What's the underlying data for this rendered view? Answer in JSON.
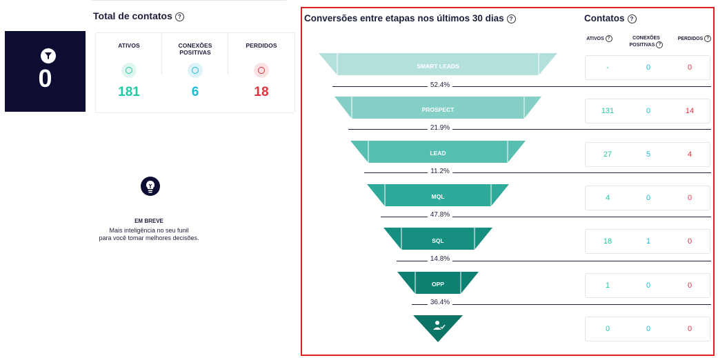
{
  "summary": {
    "zero_value": "0",
    "title": "Total de contatos",
    "stats": [
      {
        "label": "ATIVOS",
        "value": "181",
        "color": "#1ec9a3"
      },
      {
        "label": "CONEXÕES POSITIVAS",
        "value": "6",
        "color": "#1bbcd8"
      },
      {
        "label": "PERDIDOS",
        "value": "18",
        "color": "#e0323d"
      }
    ]
  },
  "coming_soon": {
    "title": "EM BREVE",
    "line1": "Mais inteligência no seu funil",
    "line2": "para você tomar melhores decisões."
  },
  "funnel": {
    "title": "Conversões entre etapas nos últimos 30 dias",
    "stages": [
      {
        "name": "SMART LEADS",
        "color": "#b4e0dc"
      },
      {
        "name": "PROSPECT",
        "color": "#84d0c6"
      },
      {
        "name": "LEAD",
        "color": "#57bfb1"
      },
      {
        "name": "MQL",
        "color": "#2ea99a"
      },
      {
        "name": "SQL",
        "color": "#178f80"
      },
      {
        "name": "OPP",
        "color": "#0d8072"
      },
      {
        "name": "",
        "color": "#0c7467"
      }
    ],
    "rates": [
      "52.4%",
      "21.9%",
      "11.2%",
      "47.8%",
      "14.8%",
      "36.4%"
    ]
  },
  "contacts": {
    "title": "Contatos",
    "headers": {
      "ativos": "ATIVOS",
      "conexoes_line1": "CONEXÕES",
      "conexoes_line2": "POSITIVAS",
      "perdidos": "PERDIDOS"
    },
    "rows": [
      {
        "ativos": "-",
        "conexoes": "0",
        "perdidos": "0"
      },
      {
        "ativos": "131",
        "conexoes": "0",
        "perdidos": "14"
      },
      {
        "ativos": "27",
        "conexoes": "5",
        "perdidos": "4"
      },
      {
        "ativos": "4",
        "conexoes": "0",
        "perdidos": "0"
      },
      {
        "ativos": "18",
        "conexoes": "1",
        "perdidos": "0"
      },
      {
        "ativos": "1",
        "conexoes": "0",
        "perdidos": "0"
      },
      {
        "ativos": "0",
        "conexoes": "0",
        "perdidos": "0"
      }
    ],
    "colors": {
      "ativos": "#1ec9a3",
      "conexoes": "#1bbcd8",
      "perdidos": "#e0323d"
    }
  }
}
